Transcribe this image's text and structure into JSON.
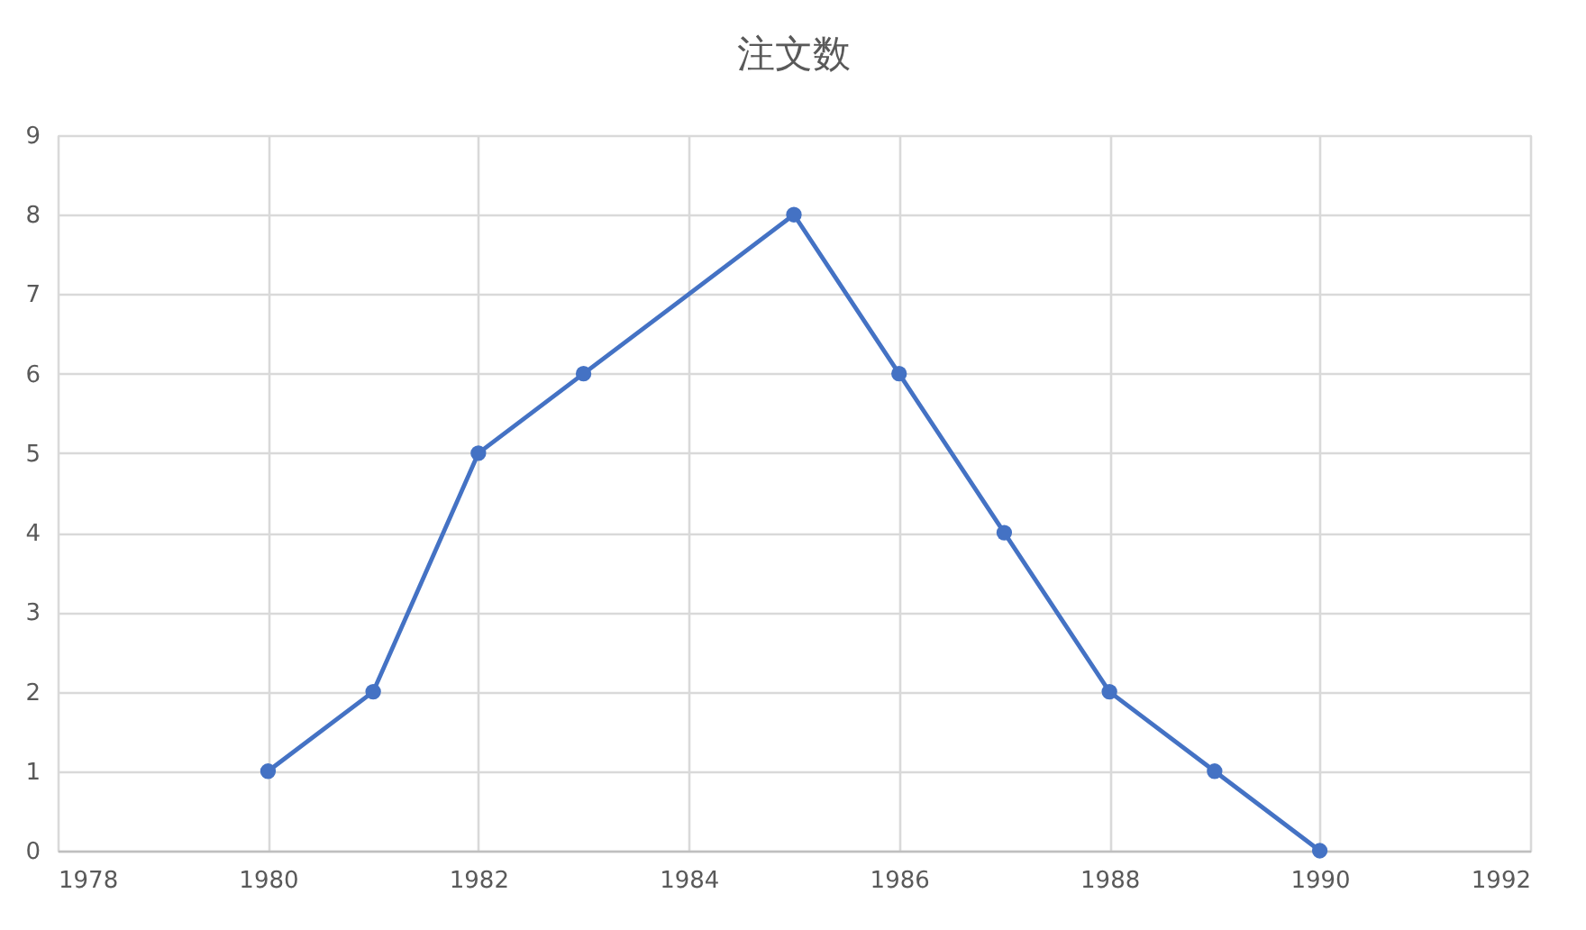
{
  "chart_data": {
    "type": "line",
    "title": "注文数",
    "x": [
      1980,
      1981,
      1982,
      1983,
      1985,
      1986,
      1987,
      1988,
      1989,
      1990
    ],
    "series": [
      {
        "color": "#4472c4",
        "values": [
          1,
          2,
          5,
          6,
          8,
          6,
          4,
          2,
          1,
          0
        ]
      }
    ],
    "xlim": [
      1978,
      1992
    ],
    "xticks": [
      1978,
      1980,
      1982,
      1984,
      1986,
      1988,
      1990,
      1992
    ],
    "ylim": [
      0,
      9
    ],
    "yticks": [
      0,
      1,
      2,
      3,
      4,
      5,
      6,
      7,
      8,
      9
    ],
    "grid": true,
    "marker": "circle",
    "line_style": "solid"
  }
}
